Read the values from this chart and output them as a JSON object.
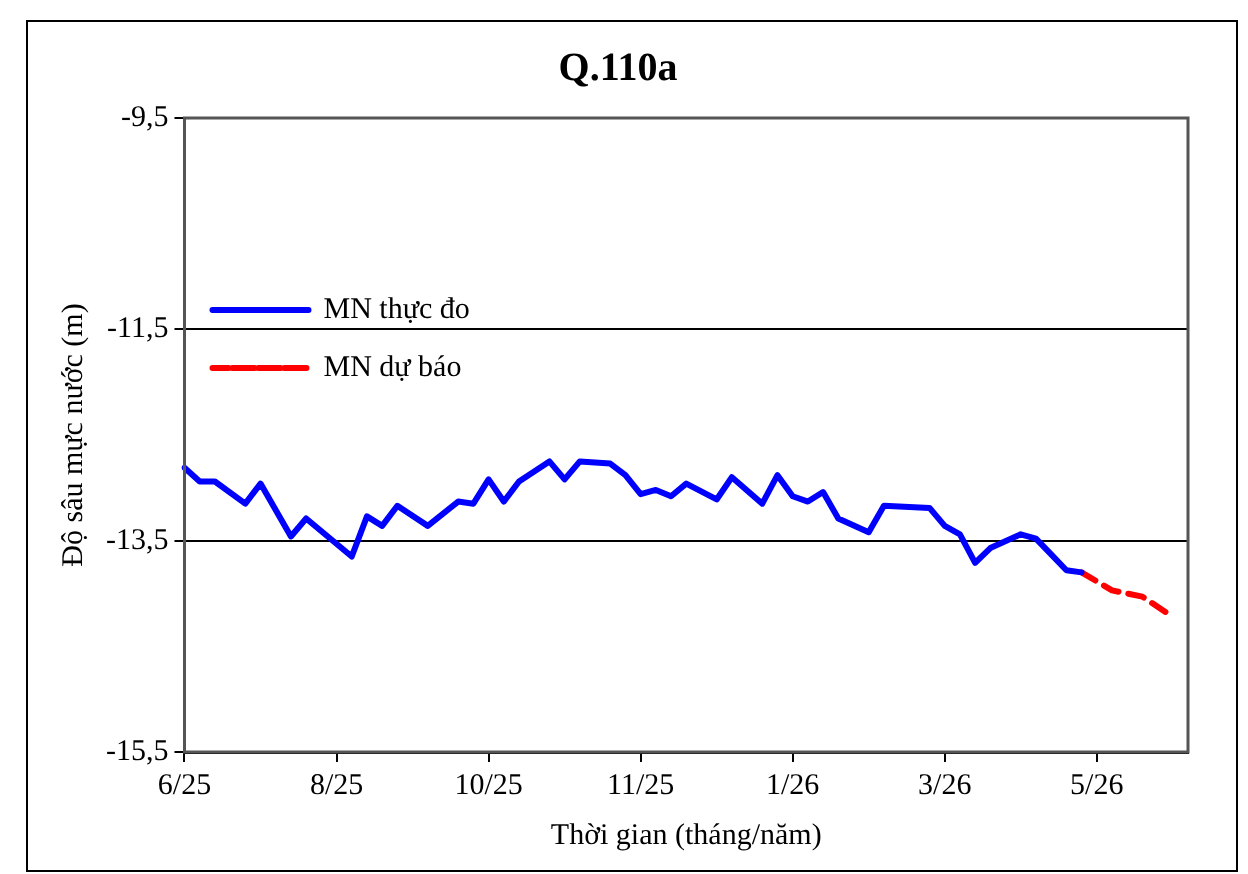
{
  "chart_data": {
    "type": "line",
    "title": "Q.110a",
    "xlabel": "Thời gian (tháng/năm)",
    "ylabel": "Độ sâu mực nước (m)",
    "categories": [
      "6/25",
      null,
      null,
      null,
      null,
      null,
      null,
      null,
      null,
      null,
      "8/25",
      null,
      null,
      null,
      null,
      null,
      null,
      null,
      null,
      null,
      "10/25",
      null,
      null,
      null,
      null,
      null,
      null,
      null,
      null,
      null,
      "11/25",
      null,
      null,
      null,
      null,
      null,
      null,
      null,
      null,
      null,
      "1/26",
      null,
      null,
      null,
      null,
      null,
      null,
      null,
      null,
      null,
      "3/26",
      null,
      null,
      null,
      null,
      null,
      null,
      null,
      null,
      null,
      "5/26",
      null,
      null,
      null,
      null,
      null,
      null
    ],
    "ylim": [
      -15.5,
      -9.5
    ],
    "yticks": [
      {
        "value": -15.5,
        "label": "-15,5"
      },
      {
        "value": -13.5,
        "label": "-13,5"
      },
      {
        "value": -11.5,
        "label": "-11,5"
      },
      {
        "value": -9.5,
        "label": "-9,5"
      }
    ],
    "grid": "y",
    "legend": "top",
    "marker": "none",
    "series": [
      {
        "name": "MN thực đo",
        "color": "#0000ff",
        "line_style": "solid",
        "values": [
          -12.81,
          -12.94,
          -12.94,
          null,
          -13.15,
          -12.96,
          null,
          -13.46,
          -13.29,
          null,
          null,
          -13.65,
          -13.27,
          -13.36,
          -13.17,
          null,
          -13.36,
          null,
          -13.13,
          -13.15,
          -12.92,
          -13.13,
          -12.94,
          null,
          -12.75,
          -12.92,
          -12.75,
          null,
          -12.77,
          -12.88,
          -13.06,
          -13.02,
          -13.08,
          -12.96,
          null,
          -13.11,
          -12.9,
          null,
          -13.15,
          -12.88,
          -13.08,
          -13.13,
          -13.04,
          -13.29,
          null,
          -13.42,
          -13.17,
          null,
          null,
          -13.19,
          -13.36,
          -13.44,
          -13.71,
          -13.57,
          null,
          -13.44,
          -13.48,
          -13.63,
          -13.78,
          -13.8,
          null,
          null,
          null,
          null,
          null,
          null,
          null
        ]
      },
      {
        "name": "MN dự báo",
        "color": "#ff0000",
        "line_style": "dashed",
        "values": [
          null,
          null,
          null,
          null,
          null,
          null,
          null,
          null,
          null,
          null,
          null,
          null,
          null,
          null,
          null,
          null,
          null,
          null,
          null,
          null,
          null,
          null,
          null,
          null,
          null,
          null,
          null,
          null,
          null,
          null,
          null,
          null,
          null,
          null,
          null,
          null,
          null,
          null,
          null,
          null,
          null,
          null,
          null,
          null,
          null,
          null,
          null,
          null,
          null,
          null,
          null,
          null,
          null,
          null,
          null,
          null,
          null,
          null,
          null,
          -13.8,
          null,
          -13.97,
          null,
          -14.03,
          null,
          -14.22,
          null
        ]
      }
    ]
  }
}
